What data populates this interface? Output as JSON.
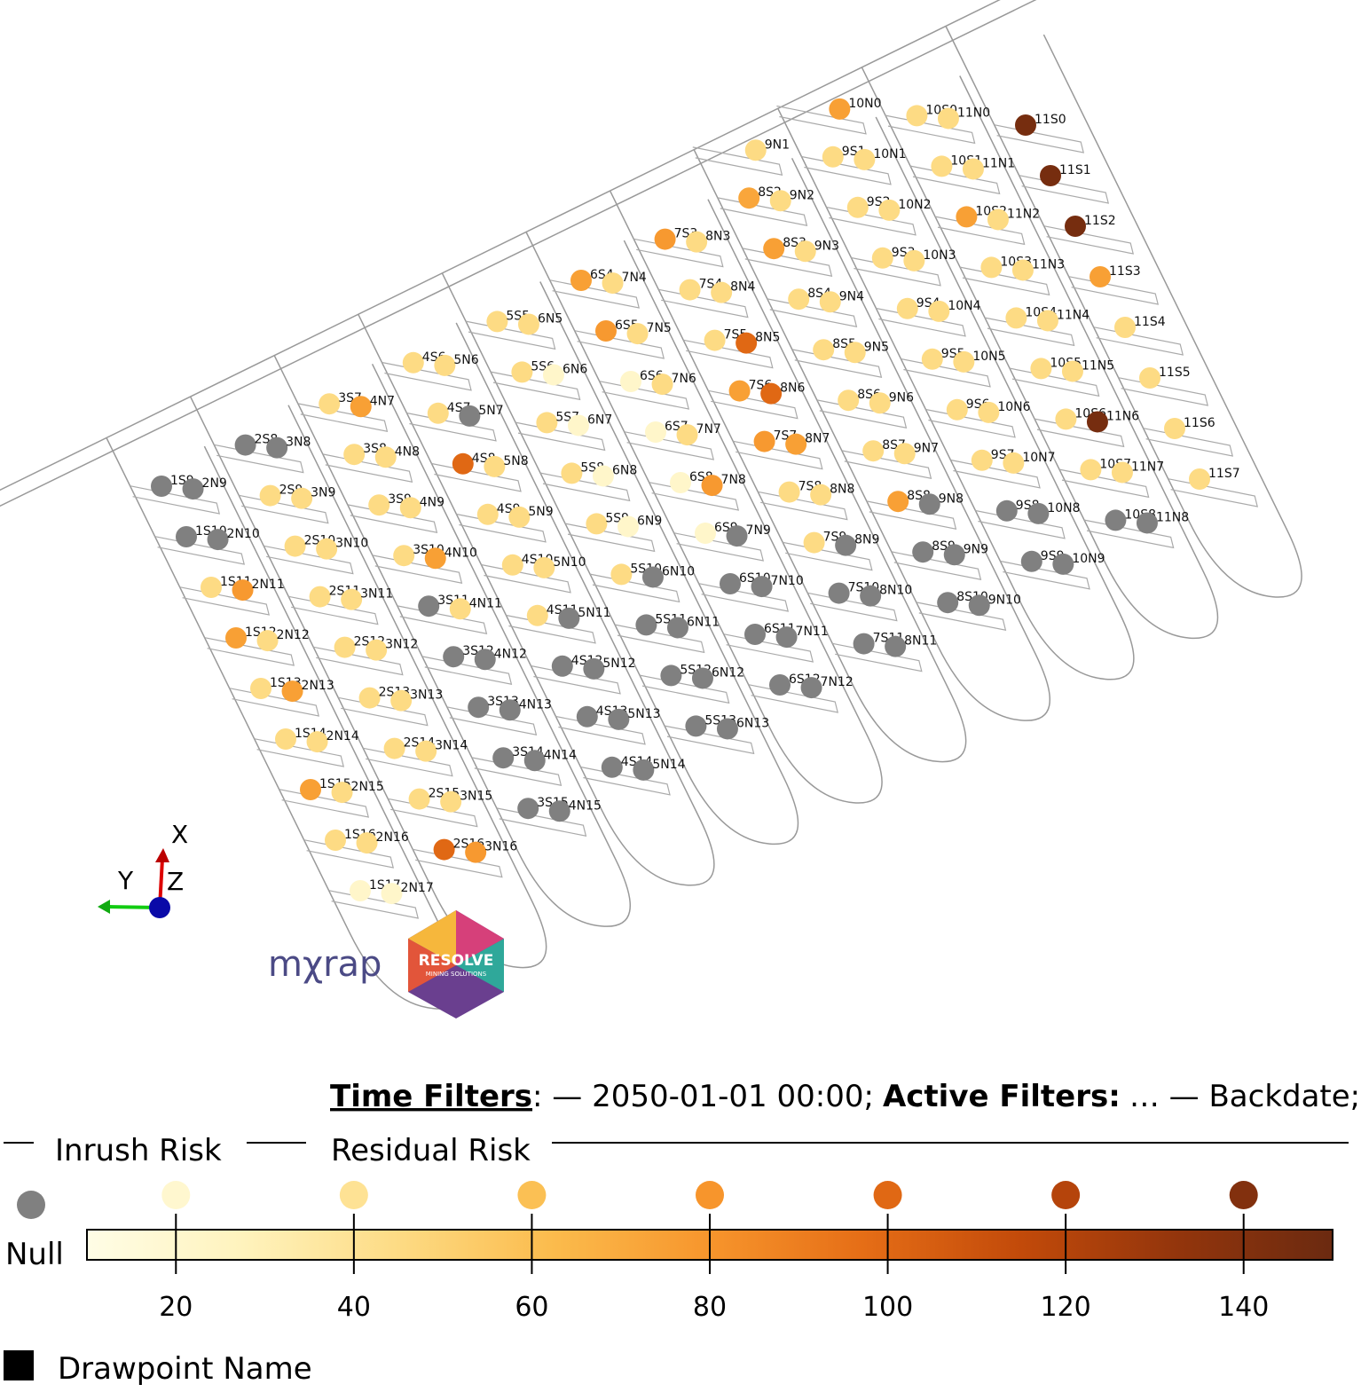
{
  "map": {
    "axes": {
      "x": "X",
      "y": "Y",
      "z": "Z"
    },
    "logo": {
      "text": "mχrap",
      "brand": "RESOLVE",
      "tagline": "MINING SOLUTIONS"
    },
    "drawpoints": [
      {
        "name": "11S0",
        "risk": 145
      },
      {
        "name": "11S1",
        "risk": 145
      },
      {
        "name": "11S2",
        "risk": 145
      },
      {
        "name": "11S3",
        "risk": 75
      },
      {
        "name": "11S4",
        "risk": 45
      },
      {
        "name": "11S5",
        "risk": 45
      },
      {
        "name": "11S6",
        "risk": 45
      },
      {
        "name": "11S7",
        "risk": 45
      },
      {
        "name": "10S0",
        "risk": 45
      },
      {
        "name": "10S1",
        "risk": 45
      },
      {
        "name": "10S2",
        "risk": 75
      },
      {
        "name": "10S3",
        "risk": 45
      },
      {
        "name": "10S4",
        "risk": 45
      },
      {
        "name": "10S5",
        "risk": 45
      },
      {
        "name": "10S6",
        "risk": 45
      },
      {
        "name": "10S7",
        "risk": 45
      },
      {
        "name": "10S8",
        "risk": null
      },
      {
        "name": "11N0",
        "risk": 45
      },
      {
        "name": "11N1",
        "risk": 45
      },
      {
        "name": "11N2",
        "risk": 45
      },
      {
        "name": "11N3",
        "risk": 45
      },
      {
        "name": "11N4",
        "risk": 45
      },
      {
        "name": "11N5",
        "risk": 45
      },
      {
        "name": "11N6",
        "risk": 145
      },
      {
        "name": "11N7",
        "risk": 45
      },
      {
        "name": "11N8",
        "risk": null
      },
      {
        "name": "9S1",
        "risk": 45
      },
      {
        "name": "9S2",
        "risk": 45
      },
      {
        "name": "9S3",
        "risk": 45
      },
      {
        "name": "9S4",
        "risk": 45
      },
      {
        "name": "9S5",
        "risk": 45
      },
      {
        "name": "9S6",
        "risk": 45
      },
      {
        "name": "9S7",
        "risk": 45
      },
      {
        "name": "9S8",
        "risk": null
      },
      {
        "name": "9S9",
        "risk": null
      },
      {
        "name": "10N0",
        "risk": 75
      },
      {
        "name": "10N1",
        "risk": 45
      },
      {
        "name": "10N2",
        "risk": 45
      },
      {
        "name": "10N3",
        "risk": 45
      },
      {
        "name": "10N4",
        "risk": 45
      },
      {
        "name": "10N5",
        "risk": 45
      },
      {
        "name": "10N6",
        "risk": 45
      },
      {
        "name": "10N7",
        "risk": 45
      },
      {
        "name": "10N8",
        "risk": null
      },
      {
        "name": "10N9",
        "risk": null
      },
      {
        "name": "8S2",
        "risk": 72
      },
      {
        "name": "8S3",
        "risk": 75
      },
      {
        "name": "8S4",
        "risk": 45
      },
      {
        "name": "8S5",
        "risk": 45
      },
      {
        "name": "8S6",
        "risk": 45
      },
      {
        "name": "8S7",
        "risk": 45
      },
      {
        "name": "8S8",
        "risk": 75
      },
      {
        "name": "8S9",
        "risk": null
      },
      {
        "name": "8S10",
        "risk": null
      },
      {
        "name": "9N1",
        "risk": 45
      },
      {
        "name": "9N2",
        "risk": 45
      },
      {
        "name": "9N3",
        "risk": 45
      },
      {
        "name": "9N4",
        "risk": 45
      },
      {
        "name": "9N5",
        "risk": 45
      },
      {
        "name": "9N6",
        "risk": 45
      },
      {
        "name": "9N7",
        "risk": 45
      },
      {
        "name": "9N8",
        "risk": null
      },
      {
        "name": "9N9",
        "risk": null
      },
      {
        "name": "9N10",
        "risk": null
      },
      {
        "name": "7S3",
        "risk": 78
      },
      {
        "name": "7S4",
        "risk": 45
      },
      {
        "name": "7S5",
        "risk": 45
      },
      {
        "name": "7S6",
        "risk": 75
      },
      {
        "name": "7S7",
        "risk": 78
      },
      {
        "name": "7S8",
        "risk": 45
      },
      {
        "name": "7S9",
        "risk": 45
      },
      {
        "name": "7S10",
        "risk": null
      },
      {
        "name": "7S11",
        "risk": null
      },
      {
        "name": "8N3",
        "risk": 45
      },
      {
        "name": "8N4",
        "risk": 45
      },
      {
        "name": "8N5",
        "risk": 100
      },
      {
        "name": "8N6",
        "risk": 100
      },
      {
        "name": "8N7",
        "risk": 75
      },
      {
        "name": "8N8",
        "risk": 45
      },
      {
        "name": "8N9",
        "risk": null
      },
      {
        "name": "8N10",
        "risk": null
      },
      {
        "name": "8N11",
        "risk": null
      },
      {
        "name": "6S4",
        "risk": 75
      },
      {
        "name": "6S5",
        "risk": 78
      },
      {
        "name": "6S6",
        "risk": 22
      },
      {
        "name": "6S7",
        "risk": 22
      },
      {
        "name": "6S8",
        "risk": 22
      },
      {
        "name": "6S9",
        "risk": 22
      },
      {
        "name": "6S10",
        "risk": null
      },
      {
        "name": "6S11",
        "risk": null
      },
      {
        "name": "6S12",
        "risk": null
      },
      {
        "name": "7N4",
        "risk": 45
      },
      {
        "name": "7N5",
        "risk": 45
      },
      {
        "name": "7N6",
        "risk": 45
      },
      {
        "name": "7N7",
        "risk": 45
      },
      {
        "name": "7N8",
        "risk": 78
      },
      {
        "name": "7N9",
        "risk": null
      },
      {
        "name": "7N10",
        "risk": null
      },
      {
        "name": "7N11",
        "risk": null
      },
      {
        "name": "7N12",
        "risk": null
      },
      {
        "name": "5S5",
        "risk": 45
      },
      {
        "name": "5S6",
        "risk": 45
      },
      {
        "name": "5S7",
        "risk": 45
      },
      {
        "name": "5S8",
        "risk": 45
      },
      {
        "name": "5S9",
        "risk": 45
      },
      {
        "name": "5S10",
        "risk": 45
      },
      {
        "name": "5S11",
        "risk": null
      },
      {
        "name": "5S12",
        "risk": null
      },
      {
        "name": "5S13",
        "risk": null
      },
      {
        "name": "6N5",
        "risk": 45
      },
      {
        "name": "6N6",
        "risk": 22
      },
      {
        "name": "6N7",
        "risk": 22
      },
      {
        "name": "6N8",
        "risk": 22
      },
      {
        "name": "6N9",
        "risk": 22
      },
      {
        "name": "6N10",
        "risk": null
      },
      {
        "name": "6N11",
        "risk": null
      },
      {
        "name": "6N12",
        "risk": null
      },
      {
        "name": "6N13",
        "risk": null
      },
      {
        "name": "4S6",
        "risk": 45
      },
      {
        "name": "4S7",
        "risk": 45
      },
      {
        "name": "4S8",
        "risk": 100
      },
      {
        "name": "4S9",
        "risk": 45
      },
      {
        "name": "4S10",
        "risk": 45
      },
      {
        "name": "4S11",
        "risk": 45
      },
      {
        "name": "4S12",
        "risk": null
      },
      {
        "name": "4S13",
        "risk": null
      },
      {
        "name": "4S14",
        "risk": null
      },
      {
        "name": "5N6",
        "risk": 45
      },
      {
        "name": "5N7",
        "risk": null
      },
      {
        "name": "5N8",
        "risk": 45
      },
      {
        "name": "5N9",
        "risk": 45
      },
      {
        "name": "5N10",
        "risk": 45
      },
      {
        "name": "5N11",
        "risk": null
      },
      {
        "name": "5N12",
        "risk": null
      },
      {
        "name": "5N13",
        "risk": null
      },
      {
        "name": "5N14",
        "risk": null
      },
      {
        "name": "3S7",
        "risk": 45
      },
      {
        "name": "3S8",
        "risk": 45
      },
      {
        "name": "3S9",
        "risk": 45
      },
      {
        "name": "3S10",
        "risk": 45
      },
      {
        "name": "3S11",
        "risk": null
      },
      {
        "name": "3S12",
        "risk": null
      },
      {
        "name": "3S13",
        "risk": null
      },
      {
        "name": "3S14",
        "risk": null
      },
      {
        "name": "3S15",
        "risk": null
      },
      {
        "name": "4N7",
        "risk": 75
      },
      {
        "name": "4N8",
        "risk": 45
      },
      {
        "name": "4N9",
        "risk": 45
      },
      {
        "name": "4N10",
        "risk": 75
      },
      {
        "name": "4N11",
        "risk": 45
      },
      {
        "name": "4N12",
        "risk": null
      },
      {
        "name": "4N13",
        "risk": null
      },
      {
        "name": "4N14",
        "risk": null
      },
      {
        "name": "4N15",
        "risk": null
      },
      {
        "name": "2S8",
        "risk": null
      },
      {
        "name": "2S9",
        "risk": 45
      },
      {
        "name": "2S10",
        "risk": 45
      },
      {
        "name": "2S11",
        "risk": 45
      },
      {
        "name": "2S12",
        "risk": 45
      },
      {
        "name": "2S13",
        "risk": 45
      },
      {
        "name": "2S14",
        "risk": 45
      },
      {
        "name": "2S15",
        "risk": 45
      },
      {
        "name": "2S16",
        "risk": 100
      },
      {
        "name": "3N8",
        "risk": null
      },
      {
        "name": "3N9",
        "risk": 45
      },
      {
        "name": "3N10",
        "risk": 45
      },
      {
        "name": "3N11",
        "risk": 45
      },
      {
        "name": "3N12",
        "risk": 45
      },
      {
        "name": "3N13",
        "risk": 45
      },
      {
        "name": "3N14",
        "risk": 45
      },
      {
        "name": "3N15",
        "risk": 45
      },
      {
        "name": "3N16",
        "risk": 78
      },
      {
        "name": "1S9",
        "risk": null
      },
      {
        "name": "1S10",
        "risk": null
      },
      {
        "name": "1S11",
        "risk": 45
      },
      {
        "name": "1S12",
        "risk": 75
      },
      {
        "name": "1S13",
        "risk": 45
      },
      {
        "name": "1S14",
        "risk": 45
      },
      {
        "name": "1S15",
        "risk": 75
      },
      {
        "name": "1S16",
        "risk": 45
      },
      {
        "name": "1S17",
        "risk": 22
      },
      {
        "name": "2N9",
        "risk": null
      },
      {
        "name": "2N10",
        "risk": null
      },
      {
        "name": "2N11",
        "risk": 78
      },
      {
        "name": "2N12",
        "risk": 45
      },
      {
        "name": "2N13",
        "risk": 75
      },
      {
        "name": "2N14",
        "risk": 45
      },
      {
        "name": "2N15",
        "risk": 45
      },
      {
        "name": "2N16",
        "risk": 45
      },
      {
        "name": "2N17",
        "risk": 22
      }
    ]
  },
  "filters": {
    "time_label": "Time Filters",
    "time": ": — 2050-01-01 00:00;",
    "active_label": "Active Filters:",
    "active": "… — Backdate;"
  },
  "legend": {
    "groups": [
      "Inrush Risk",
      "Residual Risk"
    ],
    "null_label": "Null",
    "null_color": "#808080",
    "range": [
      10,
      150
    ],
    "ticks": [
      20,
      40,
      60,
      80,
      100,
      120,
      140
    ],
    "colors": [
      "#fffde6",
      "#fff3bd",
      "#fddb84",
      "#fbbb4c",
      "#f7952c",
      "#e56d16",
      "#c24a0a",
      "#93350c",
      "#6b2a10"
    ],
    "name_label": "Drawpoint Name"
  }
}
